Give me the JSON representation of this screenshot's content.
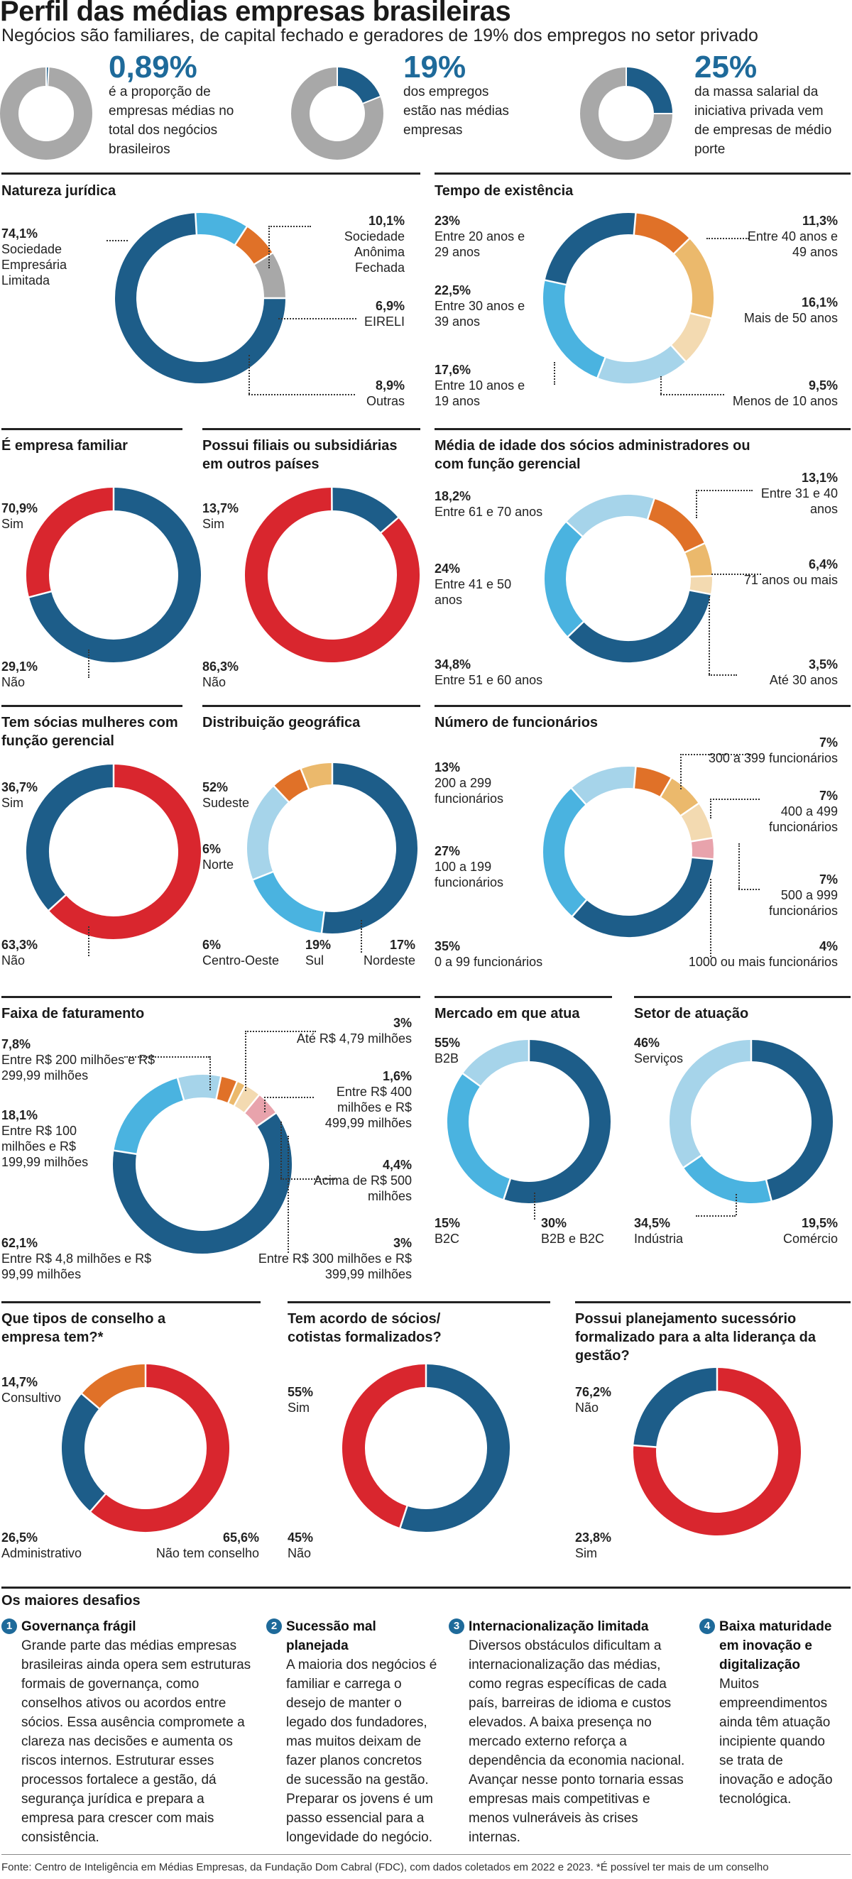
{
  "title": "Perfil das médias empresas brasileiras",
  "subtitle": "Negócios são familiares, de capital fechado e geradores de 19% dos empregos no setor privado",
  "colors": {
    "blue": "#1d5d89",
    "lightblue": "#4ab3e0",
    "paleblue": "#a6d4ea",
    "orange": "#e07128",
    "amber": "#ebb96c",
    "sand": "#f3dab1",
    "gray": "#a8a8a8",
    "red": "#d9262e",
    "pink": "#e8a3ac"
  },
  "highlights": [
    {
      "value": "0,89%",
      "text": "é a proporção de empresas médias no total dos negócios brasileiros",
      "pct": 0.89
    },
    {
      "value": "19%",
      "text": "dos empregos estão nas médias empresas",
      "pct": 19
    },
    {
      "value": "25%",
      "text": "da massa salarial da iniciativa privada vem de empresas de médio porte",
      "pct": 25
    }
  ],
  "chart_data": [
    {
      "id": "natureza",
      "type": "pie",
      "title": "Natureza jurídica",
      "slices": [
        {
          "label": "Sociedade Empresária Limitada",
          "value": 74.1,
          "display": "74,1%",
          "color": "blue"
        },
        {
          "label": "Sociedade Anônima Fechada",
          "value": 10.1,
          "display": "10,1%",
          "color": "lightblue"
        },
        {
          "label": "EIRELI",
          "value": 6.9,
          "display": "6,9%",
          "color": "orange"
        },
        {
          "label": "Outras",
          "value": 8.9,
          "display": "8,9%",
          "color": "gray"
        }
      ]
    },
    {
      "id": "tempo",
      "type": "pie",
      "title": "Tempo de existência",
      "slices": [
        {
          "label": "Entre 40 anos e 49 anos",
          "value": 11.3,
          "display": "11,3%",
          "color": "orange"
        },
        {
          "label": "Mais de 50 anos",
          "value": 16.1,
          "display": "16,1%",
          "color": "amber"
        },
        {
          "label": "Menos de 10 anos",
          "value": 9.5,
          "display": "9,5%",
          "color": "sand"
        },
        {
          "label": "Entre 10 anos e 19 anos",
          "value": 17.6,
          "display": "17,6%",
          "color": "paleblue"
        },
        {
          "label": "Entre 30 anos e 39 anos",
          "value": 22.5,
          "display": "22,5%",
          "color": "lightblue"
        },
        {
          "label": "Entre 20 anos e 29 anos",
          "value": 23,
          "display": "23%",
          "color": "blue"
        }
      ]
    },
    {
      "id": "familiar",
      "type": "pie",
      "title": "É empresa familiar",
      "slices": [
        {
          "label": "Sim",
          "value": 70.9,
          "display": "70,9%",
          "color": "blue"
        },
        {
          "label": "Não",
          "value": 29.1,
          "display": "29,1%",
          "color": "red"
        }
      ]
    },
    {
      "id": "filiais",
      "type": "pie",
      "title": "Possui filiais ou subsidiárias em outros países",
      "slices": [
        {
          "label": "Não",
          "value": 86.3,
          "display": "86,3%",
          "color": "red"
        },
        {
          "label": "Sim",
          "value": 13.7,
          "display": "13,7%",
          "color": "blue"
        }
      ]
    },
    {
      "id": "idade",
      "type": "pie",
      "title": "Média de idade dos sócios administradores ou com função gerencial",
      "slices": [
        {
          "label": "Entre 31 e 40 anos",
          "value": 13.1,
          "display": "13,1%",
          "color": "orange"
        },
        {
          "label": "71 anos ou mais",
          "value": 6.4,
          "display": "6,4%",
          "color": "amber"
        },
        {
          "label": "Até 30 anos",
          "value": 3.5,
          "display": "3,5%",
          "color": "sand"
        },
        {
          "label": "Entre 51 e 60 anos",
          "value": 34.8,
          "display": "34,8%",
          "color": "blue"
        },
        {
          "label": "Entre 41 e 50 anos",
          "value": 24,
          "display": "24%",
          "color": "lightblue"
        },
        {
          "label": "Entre 61 e 70 anos",
          "value": 18.2,
          "display": "18,2%",
          "color": "paleblue"
        }
      ]
    },
    {
      "id": "mulheres",
      "type": "pie",
      "title": "Tem sócias mulheres com função gerencial",
      "slices": [
        {
          "label": "Não",
          "value": 63.3,
          "display": "63,3%",
          "color": "red"
        },
        {
          "label": "Sim",
          "value": 36.7,
          "display": "36,7%",
          "color": "blue"
        }
      ]
    },
    {
      "id": "geo",
      "type": "pie",
      "title": "Distribuição geográfica",
      "slices": [
        {
          "label": "Sudeste",
          "value": 52,
          "display": "52%",
          "color": "blue"
        },
        {
          "label": "Nordeste",
          "value": 17,
          "display": "17%",
          "color": "lightblue"
        },
        {
          "label": "Sul",
          "value": 19,
          "display": "19%",
          "color": "paleblue"
        },
        {
          "label": "Centro-Oeste",
          "value": 6,
          "display": "6%",
          "color": "orange"
        },
        {
          "label": "Norte",
          "value": 6,
          "display": "6%",
          "color": "amber"
        }
      ]
    },
    {
      "id": "funcionarios",
      "type": "pie",
      "title": "Número de funcionários",
      "slices": [
        {
          "label": "300 a 399 funcionários",
          "value": 7,
          "display": "7%",
          "color": "orange"
        },
        {
          "label": "400 a 499 funcionários",
          "value": 7,
          "display": "7%",
          "color": "amber"
        },
        {
          "label": "500 a 999 funcionários",
          "value": 7,
          "display": "7%",
          "color": "sand"
        },
        {
          "label": "1000 ou mais funcionários",
          "value": 4,
          "display": "4%",
          "color": "pink"
        },
        {
          "label": "0 a 99 funcionários",
          "value": 35,
          "display": "35%",
          "color": "blue"
        },
        {
          "label": "100 a 199 funcionários",
          "value": 27,
          "display": "27%",
          "color": "lightblue"
        },
        {
          "label": "200 a 299 funcionários",
          "value": 13,
          "display": "13%",
          "color": "paleblue"
        }
      ]
    },
    {
      "id": "faturamento",
      "type": "pie",
      "title": "Faixa de faturamento",
      "slices": [
        {
          "label": "Até R$ 4,79 milhões",
          "value": 3,
          "display": "3%",
          "color": "orange"
        },
        {
          "label": "Entre R$ 400 milhões e R$ 499,99 milhões",
          "value": 1.6,
          "display": "1,6%",
          "color": "amber"
        },
        {
          "label": "Entre R$ 300 milhões e R$ 399,99 milhões",
          "value": 3,
          "display": "3%",
          "color": "sand"
        },
        {
          "label": "Acima de R$ 500 milhões",
          "value": 4.4,
          "display": "4,4%",
          "color": "pink"
        },
        {
          "label": "Entre R$ 4,8 milhões e R$ 99,99 milhões",
          "value": 62.1,
          "display": "62,1%",
          "color": "blue"
        },
        {
          "label": "Entre R$ 100 milhões e R$ 199,99 milhões",
          "value": 18.1,
          "display": "18,1%",
          "color": "lightblue"
        },
        {
          "label": "Entre R$ 200 milhões e R$ 299,99 milhões",
          "value": 7.8,
          "display": "7,8%",
          "color": "paleblue"
        }
      ]
    },
    {
      "id": "mercado",
      "type": "pie",
      "title": "Mercado em que atua",
      "slices": [
        {
          "label": "B2B",
          "value": 55,
          "display": "55%",
          "color": "blue"
        },
        {
          "label": "B2B e B2C",
          "value": 30,
          "display": "30%",
          "color": "lightblue"
        },
        {
          "label": "B2C",
          "value": 15,
          "display": "15%",
          "color": "paleblue"
        }
      ]
    },
    {
      "id": "setor",
      "type": "pie",
      "title": "Setor de atuação",
      "slices": [
        {
          "label": "Serviços",
          "value": 46,
          "display": "46%",
          "color": "blue"
        },
        {
          "label": "Comércio",
          "value": 19.5,
          "display": "19,5%",
          "color": "lightblue"
        },
        {
          "label": "Indústria",
          "value": 34.5,
          "display": "34,5%",
          "color": "paleblue"
        }
      ]
    },
    {
      "id": "conselho",
      "type": "pie",
      "title": "Que tipos de conselho a empresa tem?*",
      "slices": [
        {
          "label": "Não tem conselho",
          "value": 65.6,
          "display": "65,6%",
          "color": "red"
        },
        {
          "label": "Administrativo",
          "value": 26.5,
          "display": "26,5%",
          "color": "blue"
        },
        {
          "label": "Consultivo",
          "value": 14.7,
          "display": "14,7%",
          "color": "orange"
        }
      ]
    },
    {
      "id": "acordo",
      "type": "pie",
      "title": "Tem acordo de sócios/ cotistas formalizados?",
      "slices": [
        {
          "label": "Sim",
          "value": 55,
          "display": "55%",
          "color": "blue"
        },
        {
          "label": "Não",
          "value": 45,
          "display": "45%",
          "color": "red"
        }
      ]
    },
    {
      "id": "sucessao",
      "type": "pie",
      "title": "Possui planejamento sucessório formalizado para a alta liderança da gestão?",
      "slices": [
        {
          "label": "Não",
          "value": 76.2,
          "display": "76,2%",
          "color": "red"
        },
        {
          "label": "Sim",
          "value": 23.8,
          "display": "23,8%",
          "color": "blue"
        }
      ]
    }
  ],
  "challenges": {
    "title": "Os maiores desafios",
    "items": [
      {
        "n": "1",
        "title": "Governança frágil",
        "text": "Grande parte das médias empresas brasileiras ainda opera sem estruturas formais de governança, como conselhos ativos ou acordos entre sócios. Essa ausência compromete a clareza nas decisões e aumenta os riscos internos. Estruturar esses processos fortalece a gestão, dá segurança jurídica e prepara a empresa para crescer com mais consistência."
      },
      {
        "n": "2",
        "title": "Sucessão mal planejada",
        "text": "A maioria dos negócios é familiar e carrega o desejo de manter o legado dos fundadores, mas muitos deixam de fazer planos concretos de sucessão na gestão. Preparar os jovens é um passo essencial para a longevidade do negócio."
      },
      {
        "n": "3",
        "title": "Internacionalização limitada",
        "text": "Diversos obstáculos dificultam a internacionalização das médias, como regras específicas de cada país, barreiras de idioma e custos elevados. A baixa presença no mercado externo reforça a dependência da economia nacional. Avançar nesse ponto tornaria essas empresas mais competitivas e menos vulneráveis às crises internas."
      },
      {
        "n": "4",
        "title": "Baixa maturidade em inovação e digitalização",
        "text": "Muitos empreendimentos ainda têm atuação incipiente quando se trata de inovação e adoção tecnológica."
      }
    ]
  },
  "footnote": "Fonte: Centro de Inteligência em Médias Empresas, da Fundação Dom Cabral (FDC), com dados coletados em 2022 e 2023. *É possível ter mais de um conselho"
}
